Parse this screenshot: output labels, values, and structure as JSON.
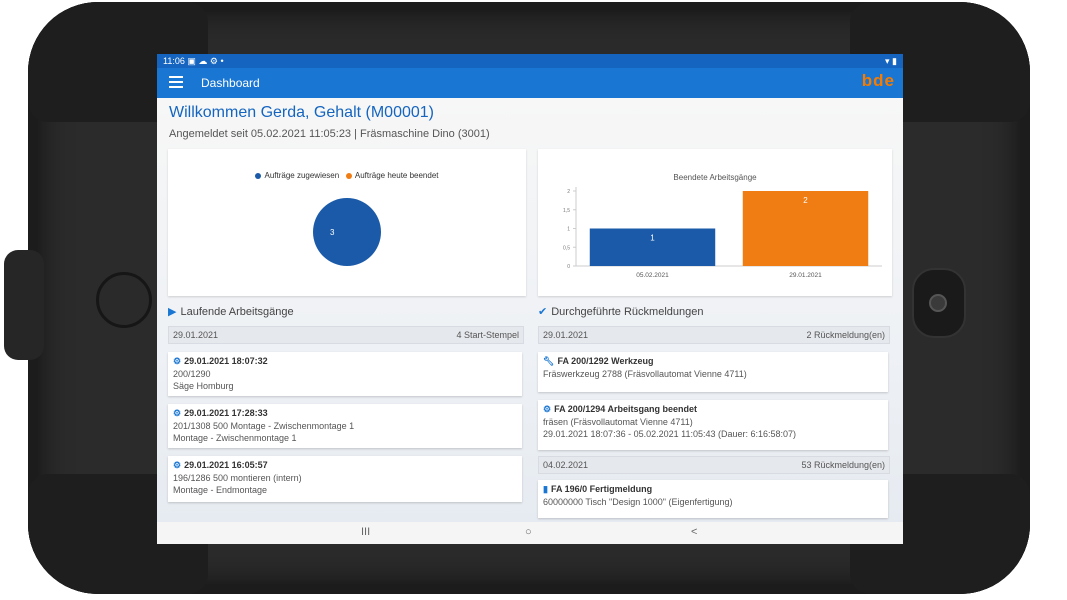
{
  "status": {
    "time": "11:06",
    "icons": "▣ ☁ ⚙ •",
    "right": "▾ ▮"
  },
  "appbar": {
    "title": "Dashboard",
    "logo": "bde"
  },
  "header": {
    "welcome": "Willkommen Gerda, Gehalt (M00001)",
    "subline": "Angemeldet seit 05.02.2021 11:05:23 | Fräsmaschine Dino (3001)"
  },
  "pie": {
    "legend": [
      {
        "label": "Aufträge zugewiesen",
        "color": "#1a5aa8"
      },
      {
        "label": "Aufträge heute beendet",
        "color": "#f07d14"
      }
    ]
  },
  "chart_data": {
    "type": "bar",
    "title": "Beendete Arbeitsgänge",
    "categories": [
      "05.02.2021",
      "29.01.2021"
    ],
    "values": [
      1,
      2
    ],
    "colors": [
      "#1a5aa8",
      "#f07d14"
    ],
    "yticks": [
      "0",
      "0,5",
      "1",
      "1,5",
      "2"
    ],
    "ylim": [
      0,
      2
    ]
  },
  "pie_chart": {
    "type": "pie",
    "values": [
      3,
      0
    ],
    "label": "3"
  },
  "laufende": {
    "title": "Laufende Arbeitsgänge",
    "group": {
      "date": "29.01.2021",
      "count": "4 Start-Stempel"
    },
    "items": [
      {
        "head": "29.01.2021 18:07:32",
        "line1": "200/1290",
        "line2": "Säge Homburg"
      },
      {
        "head": "29.01.2021 17:28:33",
        "line1": "201/1308  500 Montage - Zwischenmontage 1",
        "line2": "Montage - Zwischenmontage 1"
      },
      {
        "head": "29.01.2021 16:05:57",
        "line1": "196/1286  500 montieren (intern)",
        "line2": "Montage - Endmontage"
      }
    ]
  },
  "rueck": {
    "title": "Durchgeführte Rückmeldungen",
    "group1": {
      "date": "29.01.2021",
      "count": "2 Rückmeldung(en)"
    },
    "item1": {
      "head": "FA 200/1292 Werkzeug",
      "line1": "Fräswerkzeug 2788 (Fräsvollautomat Vienne 4711)"
    },
    "item2": {
      "head": "FA 200/1294 Arbeitsgang beendet",
      "line1": "fräsen (Fräsvollautomat Vienne 4711)",
      "line2": "29.01.2021 18:07:36 - 05.02.2021 11:05:43  (Dauer: 6:16:58:07)"
    },
    "group2": {
      "date": "04.02.2021",
      "count": "53 Rückmeldung(en)"
    },
    "item3": {
      "head": "FA 196/0 Fertigmeldung",
      "line1": "60000000 Tisch \"Design 1000\" (Eigenfertigung)"
    }
  },
  "nav": {
    "recent": "III",
    "home": "○",
    "back": "<"
  }
}
